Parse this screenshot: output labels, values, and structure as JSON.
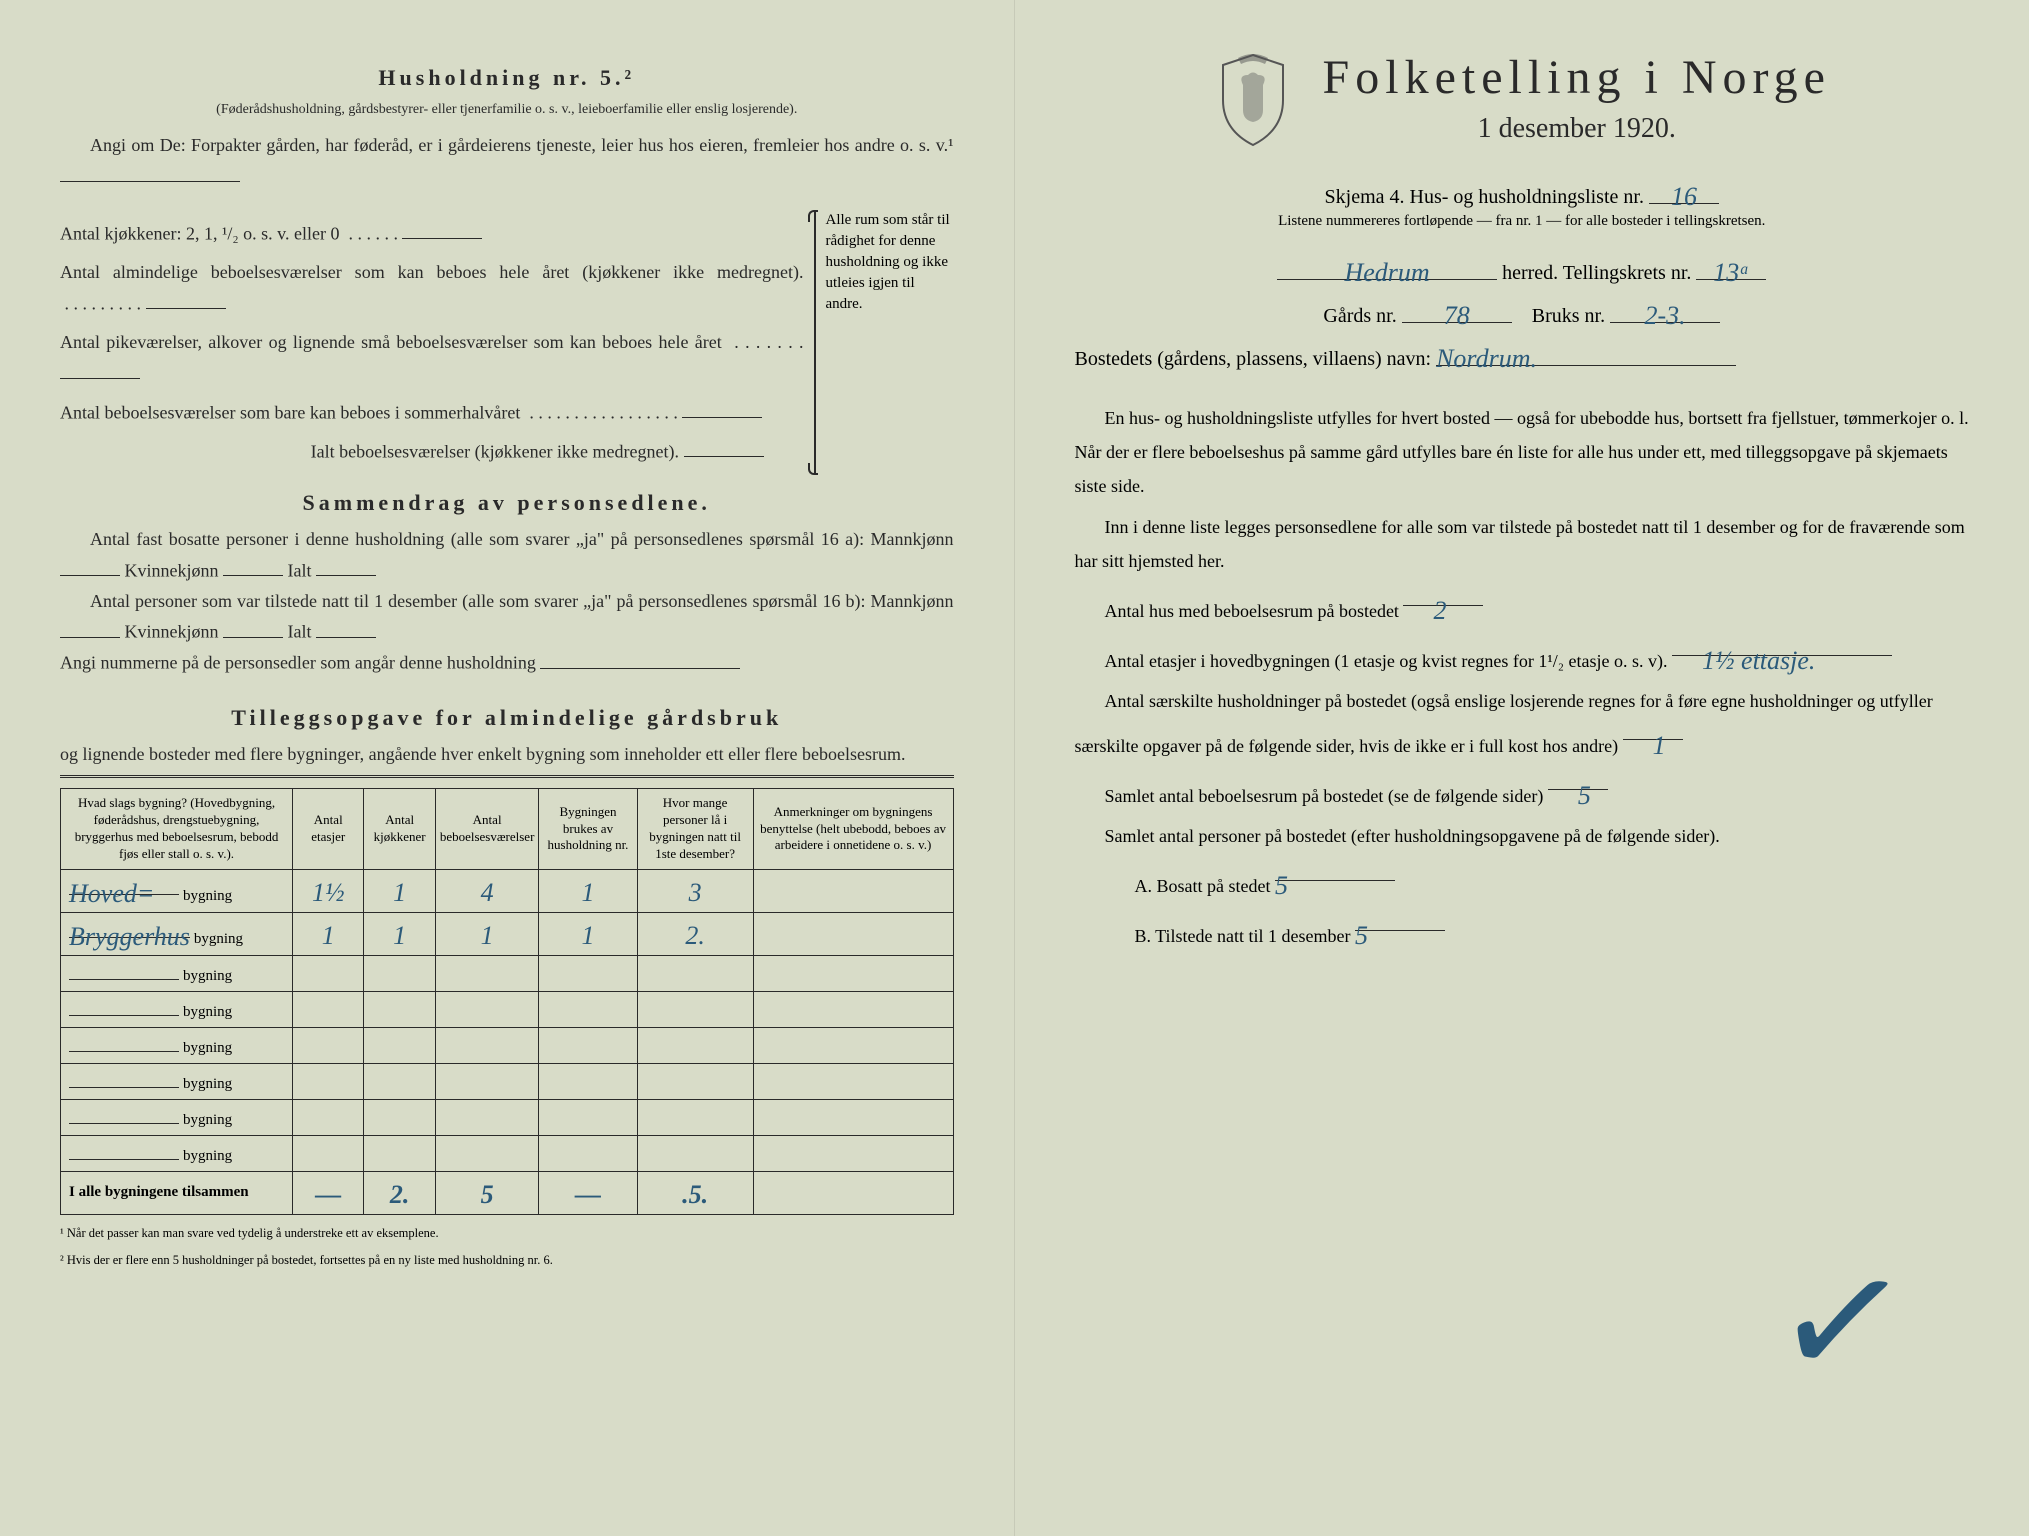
{
  "left": {
    "husholdning_title": "Husholdning nr. 5.²",
    "husholdning_note": "(Føderådshusholdning, gårdsbestyrer- eller tjenerfamilie o. s. v., leieboerfamilie eller enslig losjerende).",
    "angi_text": "Angi om De: Forpakter gården, har føderåd, er i gårdeierens tjeneste, leier hus hos eieren, fremleier hos andre o. s. v.¹",
    "kjokken_line": "Antal kjøkkener: 2, 1, ¹/₂ o. s. v. eller 0",
    "beboelse_lines": [
      "Antal almindelige beboelsesværelser som kan beboes hele året (kjøkkener ikke medregnet).",
      "Antal pikeværelser, alkover og lignende små beboelsesværelser som kan beboes hele året",
      "Antal beboelsesværelser som bare kan beboes i sommerhalvåret"
    ],
    "ialt_line": "Ialt beboelsesværelser (kjøkkener ikke medregnet).",
    "brace_text": "Alle rum som står til rådighet for denne husholdning og ikke utleies igjen til andre.",
    "sammendrag_title": "Sammendrag av personsedlene.",
    "sammendrag_p1": "Antal fast bosatte personer i denne husholdning (alle som svarer „ja\" på personsedlenes spørsmål 16 a): Mannkjønn",
    "kvinnekjonn": "Kvinnekjønn",
    "ialt": "Ialt",
    "sammendrag_p2": "Antal personer som var tilstede natt til 1 desember (alle som svarer „ja\" på personsedlenes spørsmål 16 b): Mannkjønn",
    "angi_nummerne": "Angi nummerne på de personsedler som angår denne husholdning",
    "tillegg_title": "Tilleggsopgave for almindelige gårdsbruk",
    "tillegg_sub": "og lignende bosteder med flere bygninger, angående hver enkelt bygning som inneholder ett eller flere beboelsesrum.",
    "table": {
      "headers": [
        "Hvad slags bygning?\n(Hovedbygning, føderådshus, drengstuebygning, bryggerhus med beboelsesrum, bebodd fjøs eller stall o. s. v.).",
        "Antal etasjer",
        "Antal kjøkkener",
        "Antal beboelsesværelser",
        "Bygningen brukes av husholdning nr.",
        "Hvor mange personer lå i bygningen natt til 1ste desember?",
        "Anmerkninger om bygningens benyttelse (helt ubebodd, beboes av arbeidere i onnetidene o. s. v.)"
      ],
      "rows": [
        {
          "label": "Hoved=",
          "hand": true,
          "cells": [
            "1½",
            "1",
            "4",
            "1",
            "3",
            ""
          ]
        },
        {
          "label": "Bryggerhus",
          "hand": true,
          "cells": [
            "1",
            "1",
            "1",
            "1",
            "2.",
            ""
          ]
        },
        {
          "label": "",
          "cells": [
            "",
            "",
            "",
            "",
            "",
            ""
          ]
        },
        {
          "label": "",
          "cells": [
            "",
            "",
            "",
            "",
            "",
            ""
          ]
        },
        {
          "label": "",
          "cells": [
            "",
            "",
            "",
            "",
            "",
            ""
          ]
        },
        {
          "label": "",
          "cells": [
            "",
            "",
            "",
            "",
            "",
            ""
          ]
        },
        {
          "label": "",
          "cells": [
            "",
            "",
            "",
            "",
            "",
            ""
          ]
        },
        {
          "label": "",
          "cells": [
            "",
            "",
            "",
            "",
            "",
            ""
          ]
        }
      ],
      "total_label": "I alle bygningene tilsammen",
      "total_cells": [
        "—",
        "2.",
        "5",
        "—",
        ".5.",
        ""
      ]
    },
    "footnote1": "¹ Når det passer kan man svare ved tydelig å understreke ett av eksemplene.",
    "footnote2": "² Hvis der er flere enn 5 husholdninger på bostedet, fortsettes på en ny liste med husholdning nr. 6.",
    "bygning_suffix": "bygning"
  },
  "right": {
    "title": "Folketelling i Norge",
    "subtitle": "1 desember 1920.",
    "skjema_line_pre": "Skjema 4.  Hus- og husholdningsliste nr.",
    "skjema_nr": "16",
    "skjema_sub": "Listene nummereres fortløpende — fra nr. 1 — for alle bosteder i tellingskretsen.",
    "herred_value": "Hedrum",
    "herred_label": "herred.  Tellingskrets nr.",
    "tellingskrets_nr": "13ᵃ",
    "gards_label": "Gårds nr.",
    "gards_nr": "78",
    "bruks_label": "Bruks nr.",
    "bruks_nr": "2-3.",
    "bosted_label": "Bostedets (gårdens, plassens, villaens) navn:",
    "bosted_value": "Nordrum.",
    "para1": "En hus- og husholdningsliste utfylles for hvert bosted — også for ubebodde hus, bortsett fra fjellstuer, tømmerkojer o. l.  Når der er flere beboelseshus på samme gård utfylles bare én liste for alle hus under ett, med tilleggsopgave på skjemaets siste side.",
    "para2": "Inn i denne liste legges personsedlene for alle som var tilstede på bostedet natt til 1 desember og for de fraværende som har sitt hjemsted her.",
    "antal_hus_label": "Antal hus med beboelsesrum på bostedet",
    "antal_hus_value": "2",
    "antal_etasjer_label_a": "Antal etasjer i hovedbygningen (1 etasje og kvist regnes for 1¹/₂ etasje o. s. v).",
    "antal_etasjer_value": "1½ ettasje.",
    "antal_hush_label": "Antal særskilte husholdninger på bostedet (også enslige losjerende regnes for å føre egne husholdninger og utfyller særskilte opgaver på de følgende sider, hvis de ikke er i full kost hos andre)",
    "antal_hush_value": "1",
    "samlet_rum_label": "Samlet antal beboelsesrum på bostedet (se de følgende sider)",
    "samlet_rum_value": "5",
    "samlet_personer_label": "Samlet antal personer på bostedet (efter husholdningsopgavene på de følgende sider).",
    "bosatt_label": "A.  Bosatt på stedet",
    "bosatt_value": "5",
    "tilstede_label": "B.  Tilstede natt til 1 desember",
    "tilstede_value": "5"
  },
  "colors": {
    "paper": "#d8dcc8",
    "ink": "#2a2a2a",
    "handwriting": "#2b5a7a"
  }
}
